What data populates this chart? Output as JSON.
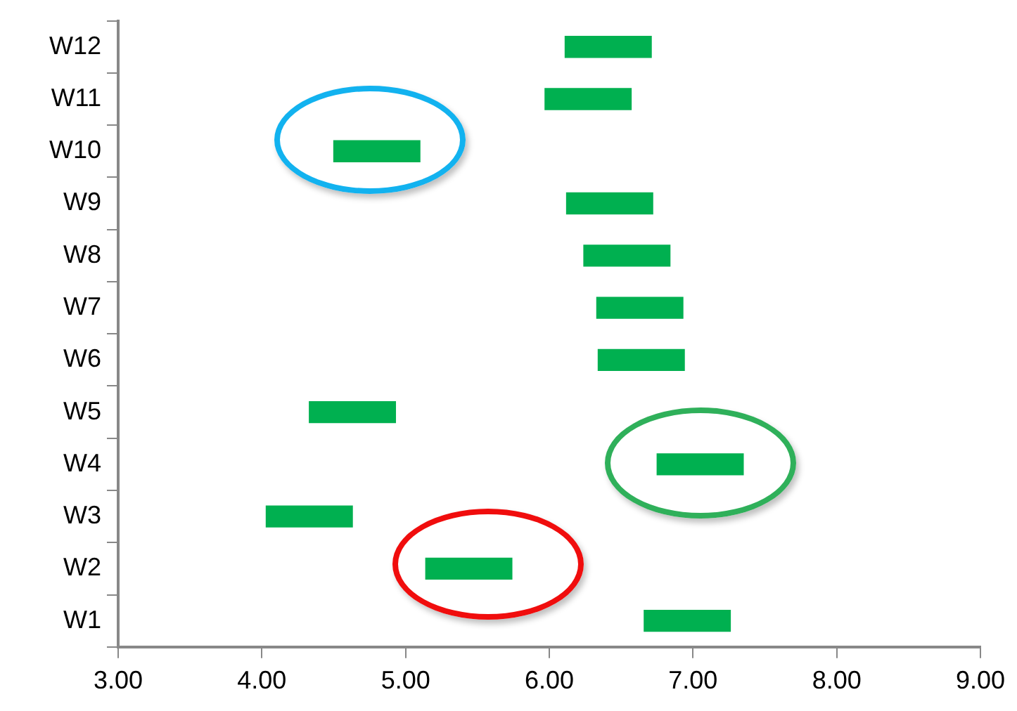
{
  "chart_data": {
    "type": "bar",
    "orientation": "horizontal",
    "categories": [
      "W12",
      "W11",
      "W10",
      "W9",
      "W8",
      "W7",
      "W6",
      "W5",
      "W4",
      "W3",
      "W2",
      "W1"
    ],
    "base": [
      6.11,
      5.97,
      4.5,
      6.12,
      6.24,
      6.33,
      6.34,
      4.33,
      6.75,
      4.03,
      5.14,
      6.66
    ],
    "values": [
      0.6,
      0.6,
      0.6,
      0.6,
      0.6,
      0.6,
      0.6,
      0.6,
      0.6,
      0.6,
      0.6,
      0.6
    ],
    "color": "#00b050",
    "xlim": [
      3,
      9
    ],
    "xticks": [
      {
        "value": 3,
        "label": "3.00"
      },
      {
        "value": 4,
        "label": "4.00"
      },
      {
        "value": 5,
        "label": "5.00"
      },
      {
        "value": 6,
        "label": "6.00"
      },
      {
        "value": 7,
        "label": "7.00"
      },
      {
        "value": 8,
        "label": "8.00"
      },
      {
        "value": 9,
        "label": "9.00"
      }
    ],
    "grid": false,
    "legend": false
  }
}
